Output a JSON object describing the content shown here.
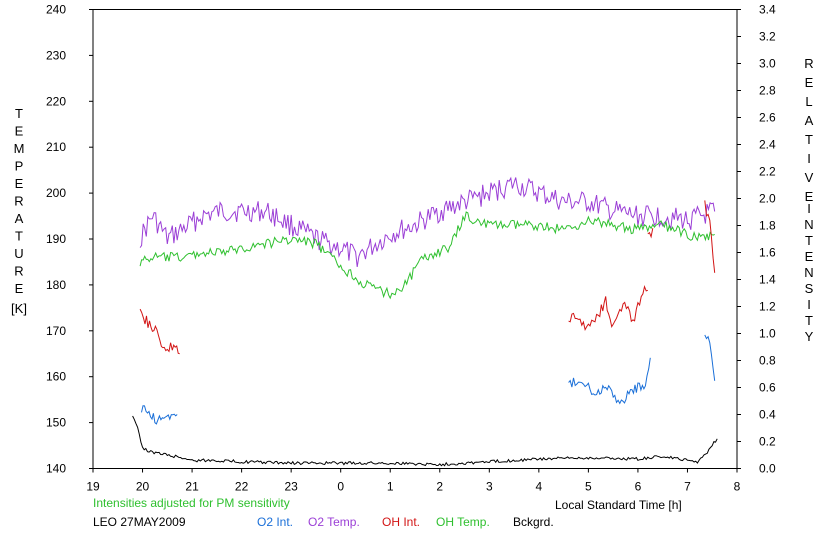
{
  "chart_data": {
    "type": "line",
    "left_axis": {
      "label_letters": [
        "T",
        "E",
        "M",
        "P",
        "E",
        "R",
        "A",
        "T",
        "U",
        "R",
        "E"
      ],
      "unit": "[K]",
      "ylim": [
        140,
        240
      ],
      "ticks": [
        "240",
        "230",
        "220",
        "210",
        "200",
        "190",
        "180",
        "170",
        "160",
        "150",
        "140"
      ]
    },
    "right_axis": {
      "label_word1": [
        "R",
        "E",
        "L",
        "A",
        "T",
        "I",
        "V",
        "E"
      ],
      "label_word2": [
        "I",
        "N",
        "T",
        "E",
        "N",
        "S",
        "I",
        "T",
        "Y"
      ],
      "ylim": [
        0.0,
        3.4
      ],
      "ticks": [
        "3.4",
        "3.2",
        "3.0",
        "2.8",
        "2.6",
        "2.4",
        "2.2",
        "2.0",
        "1.8",
        "1.6",
        "1.4",
        "1.2",
        "1.0",
        "0.8",
        "0.6",
        "0.4",
        "0.2",
        "0.0"
      ]
    },
    "x_axis": {
      "xlabel": "Local Standard Time [h]",
      "xlim": [
        19,
        32
      ],
      "ticks": [
        "19",
        "20",
        "21",
        "22",
        "23",
        "0",
        "1",
        "2",
        "3",
        "4",
        "5",
        "6",
        "7",
        "8"
      ]
    },
    "note": "Intensities adjusted for PM sensitivity",
    "station": "LEO 27MAY2009",
    "series": [
      {
        "name": "O2 Int.",
        "color": "#1a6fd8",
        "axis": "right",
        "segments": [
          [
            [
              19.98,
              0.45
            ],
            [
              20.1,
              0.42
            ],
            [
              20.25,
              0.36
            ],
            [
              20.4,
              0.38
            ],
            [
              20.55,
              0.36
            ],
            [
              20.7,
              0.4
            ]
          ],
          [
            [
              28.6,
              0.63
            ],
            [
              28.8,
              0.65
            ],
            [
              29.0,
              0.6
            ],
            [
              29.2,
              0.55
            ],
            [
              29.35,
              0.63
            ],
            [
              29.5,
              0.55
            ],
            [
              29.7,
              0.48
            ],
            [
              29.85,
              0.58
            ],
            [
              30.0,
              0.6
            ],
            [
              30.15,
              0.62
            ],
            [
              30.25,
              0.82
            ]
          ],
          [
            [
              31.35,
              1.0
            ],
            [
              31.45,
              0.92
            ],
            [
              31.55,
              0.65
            ]
          ]
        ]
      },
      {
        "name": "O2 Temp.",
        "color": "#9b3fd6",
        "axis": "left",
        "segments": [
          [
            [
              19.95,
              190
            ],
            [
              20.2,
              195
            ],
            [
              20.5,
              190
            ],
            [
              20.8,
              192
            ],
            [
              21.2,
              195
            ],
            [
              21.6,
              196
            ],
            [
              22.0,
              196
            ],
            [
              22.5,
              196
            ],
            [
              23.0,
              193
            ],
            [
              23.5,
              190
            ],
            [
              24.0,
              188
            ],
            [
              24.3,
              186
            ],
            [
              24.6,
              188
            ],
            [
              25.0,
              191
            ],
            [
              25.5,
              193
            ],
            [
              26.0,
              196
            ],
            [
              26.5,
              198
            ],
            [
              27.0,
              200
            ],
            [
              27.5,
              202
            ],
            [
              28.0,
              200
            ],
            [
              28.5,
              198
            ],
            [
              29.0,
              198
            ],
            [
              29.5,
              196
            ],
            [
              30.0,
              195
            ],
            [
              30.5,
              195
            ],
            [
              31.0,
              194
            ],
            [
              31.3,
              195
            ],
            [
              31.55,
              196
            ]
          ]
        ]
      },
      {
        "name": "OH Int.",
        "color": "#d21414",
        "axis": "right",
        "segments": [
          [
            [
              19.95,
              1.22
            ],
            [
              20.05,
              1.1
            ],
            [
              20.2,
              1.05
            ],
            [
              20.35,
              0.95
            ],
            [
              20.5,
              0.88
            ],
            [
              20.6,
              0.9
            ],
            [
              20.75,
              0.85
            ]
          ],
          [
            [
              28.6,
              1.12
            ],
            [
              28.8,
              1.1
            ],
            [
              29.0,
              1.05
            ],
            [
              29.2,
              1.15
            ],
            [
              29.35,
              1.25
            ],
            [
              29.5,
              1.05
            ],
            [
              29.7,
              1.22
            ],
            [
              29.9,
              1.1
            ],
            [
              30.1,
              1.3
            ],
            [
              30.2,
              1.32
            ]
          ],
          [
            [
              30.2,
              1.7
            ],
            [
              30.3,
              1.78
            ]
          ],
          [
            [
              31.35,
              1.95
            ],
            [
              31.45,
              1.8
            ],
            [
              31.55,
              1.45
            ]
          ]
        ]
      },
      {
        "name": "OH Temp.",
        "color": "#2fc02f",
        "axis": "left",
        "segments": [
          [
            [
              19.95,
              185
            ],
            [
              20.2,
              186
            ],
            [
              20.5,
              186
            ],
            [
              20.8,
              186
            ],
            [
              21.2,
              187
            ],
            [
              21.6,
              187
            ],
            [
              22.0,
              188
            ],
            [
              22.5,
              189
            ],
            [
              23.0,
              190
            ],
            [
              23.5,
              189
            ],
            [
              24.0,
              184
            ],
            [
              24.5,
              180
            ],
            [
              25.0,
              178
            ],
            [
              25.3,
              180
            ],
            [
              25.6,
              185
            ],
            [
              25.9,
              187
            ],
            [
              26.2,
              188
            ],
            [
              26.5,
              195
            ],
            [
              27.0,
              193
            ],
            [
              27.5,
              193
            ],
            [
              28.0,
              193
            ],
            [
              28.5,
              192
            ],
            [
              29.0,
              194
            ],
            [
              29.5,
              193
            ],
            [
              30.0,
              192
            ],
            [
              30.5,
              193
            ],
            [
              31.0,
              191
            ],
            [
              31.3,
              190
            ],
            [
              31.55,
              191
            ]
          ]
        ]
      },
      {
        "name": "Bckgrd.",
        "color": "#000000",
        "axis": "right",
        "segments": [
          [
            [
              19.8,
              0.4
            ],
            [
              19.9,
              0.3
            ],
            [
              20.0,
              0.15
            ],
            [
              20.2,
              0.12
            ],
            [
              20.5,
              0.1
            ],
            [
              20.8,
              0.08
            ],
            [
              21.0,
              0.06
            ],
            [
              21.5,
              0.06
            ],
            [
              22.0,
              0.05
            ],
            [
              23.0,
              0.04
            ],
            [
              24.0,
              0.04
            ],
            [
              25.0,
              0.04
            ],
            [
              26.0,
              0.03
            ],
            [
              27.0,
              0.05
            ],
            [
              28.0,
              0.07
            ],
            [
              29.0,
              0.08
            ],
            [
              30.0,
              0.07
            ],
            [
              30.5,
              0.09
            ],
            [
              31.0,
              0.06
            ],
            [
              31.2,
              0.05
            ],
            [
              31.4,
              0.12
            ],
            [
              31.5,
              0.18
            ],
            [
              31.6,
              0.22
            ]
          ]
        ]
      }
    ]
  }
}
